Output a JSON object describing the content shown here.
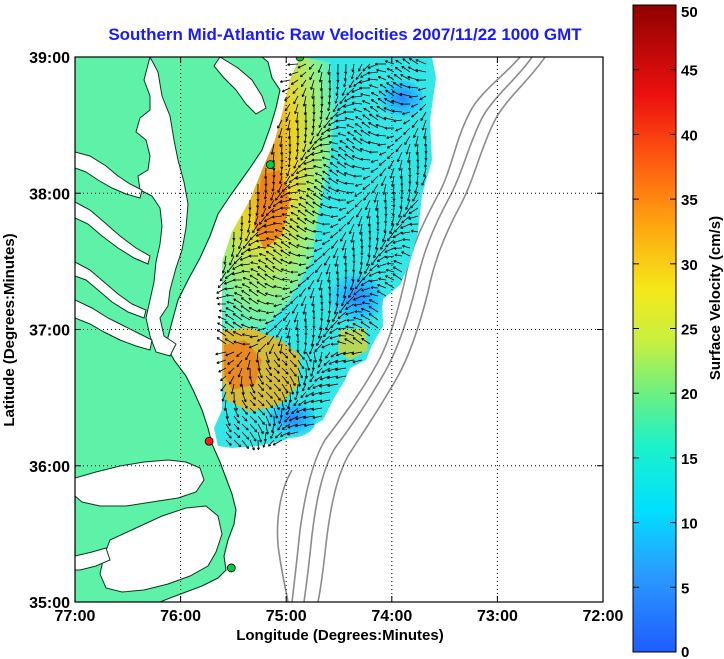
{
  "chart_data": {
    "type": "heatmap",
    "title": "Southern Mid-Atlantic Raw Velocities 2007/11/22 1000 GMT",
    "xlabel": "Longitude (Degrees:Minutes)",
    "ylabel": "Latitude (Degrees:Minutes)",
    "x_ticks": [
      "77:00",
      "76:00",
      "75:00",
      "74:00",
      "73:00",
      "72:00"
    ],
    "y_ticks": [
      "35:00",
      "36:00",
      "37:00",
      "38:00",
      "39:00"
    ],
    "xlim": [
      -77,
      -72
    ],
    "ylim": [
      35,
      39
    ],
    "grid": true,
    "colorbar": {
      "label": "Surface Velocity (cm/s)",
      "range": [
        0,
        50
      ],
      "ticks": [
        "0",
        "5",
        "10",
        "15",
        "20",
        "25",
        "30",
        "35",
        "40",
        "45",
        "50"
      ]
    },
    "stations": [
      {
        "lon": -74.87,
        "lat": 39.0,
        "color": "#00cc44"
      },
      {
        "lon": -75.15,
        "lat": 38.21,
        "color": "#00cc44"
      },
      {
        "lon": -75.73,
        "lat": 36.18,
        "color": "#ff1a1a"
      },
      {
        "lon": -75.52,
        "lat": 35.25,
        "color": "#00cc44"
      }
    ],
    "colors": {
      "land": "#5ef2a8",
      "coast": "#0a3a1a",
      "bathymetry": "#8c8c8c",
      "arrows": "#000000"
    }
  }
}
